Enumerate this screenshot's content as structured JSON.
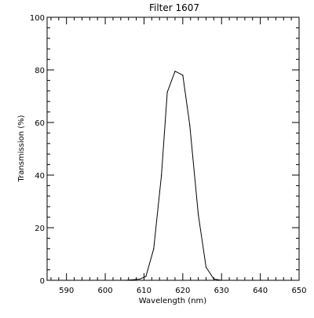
{
  "chart_data": {
    "type": "line",
    "title": "Filter 1607",
    "xlabel": "Wavelength (nm)",
    "ylabel": "Transmission (%)",
    "xlim": [
      585,
      650
    ],
    "ylim": [
      0,
      100
    ],
    "x_ticks": [
      590,
      600,
      610,
      620,
      630,
      640,
      650
    ],
    "y_ticks": [
      0,
      20,
      40,
      60,
      80,
      100
    ],
    "x_minor_step": 2,
    "y_minor_step": 4,
    "grid": false,
    "line_color": "#000000",
    "series": [
      {
        "x": [
          605,
          607,
          609,
          610.5,
          612.5,
          614.5,
          616,
          618,
          620,
          621.8,
          624,
          626,
          628,
          630
        ],
        "y": [
          0,
          0.2,
          0.5,
          1.5,
          12,
          40,
          71.5,
          79.5,
          78,
          59,
          25,
          5,
          0.5,
          0
        ]
      }
    ]
  }
}
